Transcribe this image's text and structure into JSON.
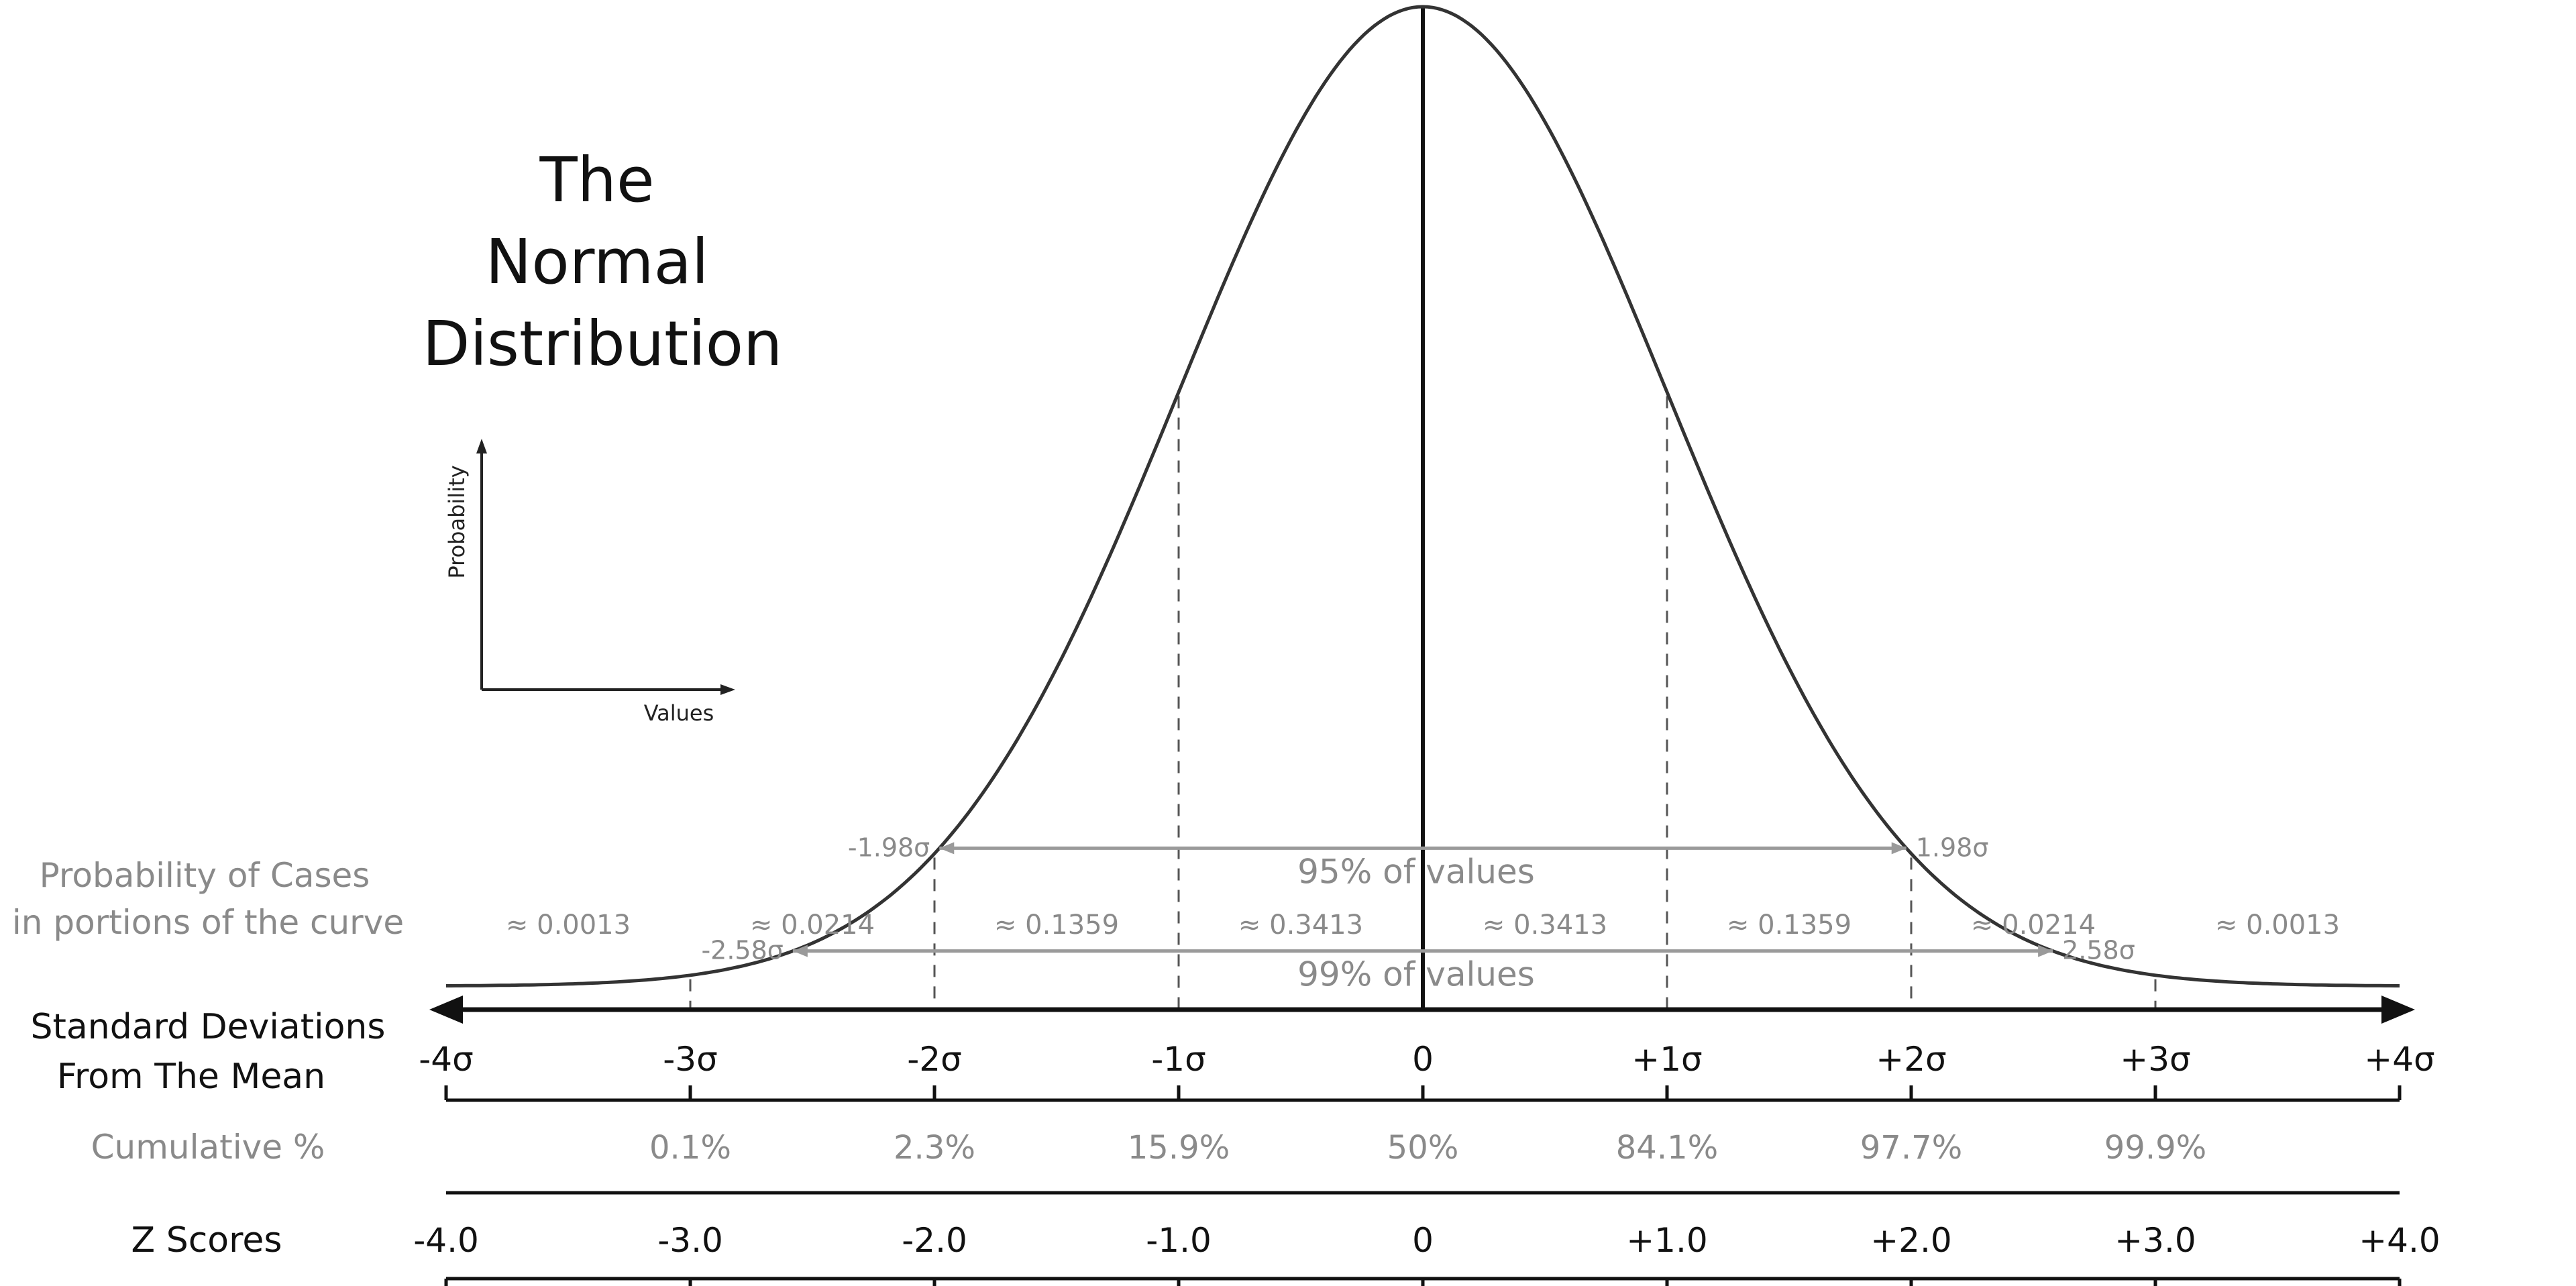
{
  "chart_data": {
    "type": "line",
    "title_lines": [
      "The",
      "Normal",
      "Distribution"
    ],
    "inset": {
      "ylabel": "Probability",
      "xlabel": "Values"
    },
    "xlim": [
      -4,
      4
    ],
    "sd_range_bands": [
      {
        "low": -1.98,
        "high": 1.98,
        "low_label": "-1.98σ",
        "high_label": "1.98σ",
        "label": "95% of values"
      },
      {
        "low": -2.58,
        "high": 2.58,
        "low_label": "-2.58σ",
        "high_label": "2.58σ",
        "label": "99% of values"
      }
    ],
    "probability_row": {
      "label_lines": [
        "Probability of Cases",
        "in portions of the curve"
      ],
      "segments": [
        {
          "center": -3.5,
          "value": "≈ 0.0013"
        },
        {
          "center": -2.5,
          "value": "≈ 0.0214"
        },
        {
          "center": -1.5,
          "value": "≈ 0.1359"
        },
        {
          "center": -0.5,
          "value": "≈ 0.3413"
        },
        {
          "center": 0.5,
          "value": "≈ 0.3413"
        },
        {
          "center": 1.5,
          "value": "≈ 0.1359"
        },
        {
          "center": 2.5,
          "value": "≈ 0.0214"
        },
        {
          "center": 3.5,
          "value": "≈ 0.0013"
        }
      ]
    },
    "sd_row": {
      "label_lines": [
        "Standard Deviations",
        "From The Mean"
      ],
      "ticks": [
        {
          "x": -4,
          "label": "-4σ"
        },
        {
          "x": -3,
          "label": "-3σ"
        },
        {
          "x": -2,
          "label": "-2σ"
        },
        {
          "x": -1,
          "label": "-1σ"
        },
        {
          "x": 0,
          "label": "0"
        },
        {
          "x": 1,
          "label": "+1σ"
        },
        {
          "x": 2,
          "label": "+2σ"
        },
        {
          "x": 3,
          "label": "+3σ"
        },
        {
          "x": 4,
          "label": "+4σ"
        }
      ]
    },
    "cumulative_row": {
      "label": "Cumulative %",
      "ticks": [
        {
          "x": -3,
          "label": "0.1%"
        },
        {
          "x": -2,
          "label": "2.3%"
        },
        {
          "x": -1,
          "label": "15.9%"
        },
        {
          "x": 0,
          "label": "50%"
        },
        {
          "x": 1,
          "label": "84.1%"
        },
        {
          "x": 2,
          "label": "97.7%"
        },
        {
          "x": 3,
          "label": "99.9%"
        }
      ]
    },
    "z_row": {
      "label": "Z Scores",
      "ticks": [
        {
          "x": -4,
          "label": "-4.0"
        },
        {
          "x": -3,
          "label": "-3.0"
        },
        {
          "x": -2,
          "label": "-2.0"
        },
        {
          "x": -1,
          "label": "-1.0"
        },
        {
          "x": 0,
          "label": "0"
        },
        {
          "x": 1,
          "label": "+1.0"
        },
        {
          "x": 2,
          "label": "+2.0"
        },
        {
          "x": 3,
          "label": "+3.0"
        },
        {
          "x": 4,
          "label": "+4.0"
        }
      ]
    },
    "colors": {
      "curve": "#333333",
      "axis": "#111111",
      "gray_text": "#8a8a8a",
      "band_line": "#9a9a9a",
      "dashes": "#555555"
    }
  }
}
